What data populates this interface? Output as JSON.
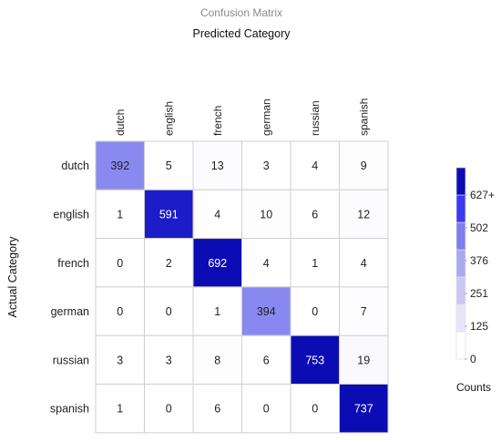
{
  "chart_data": {
    "type": "heatmap",
    "title": "Confusion Matrix",
    "xlabel": "Predicted Category",
    "ylabel": "Actual Category",
    "x_categories": [
      "dutch",
      "english",
      "french",
      "german",
      "russian",
      "spanish"
    ],
    "y_categories": [
      "dutch",
      "english",
      "french",
      "german",
      "russian",
      "spanish"
    ],
    "values": [
      [
        392,
        5,
        13,
        3,
        4,
        9
      ],
      [
        1,
        591,
        4,
        10,
        6,
        12
      ],
      [
        0,
        2,
        692,
        4,
        1,
        4
      ],
      [
        0,
        0,
        1,
        394,
        0,
        7
      ],
      [
        3,
        3,
        8,
        6,
        753,
        19
      ],
      [
        1,
        0,
        6,
        0,
        0,
        737
      ]
    ],
    "colorbar": {
      "title": "Counts",
      "tick_labels": [
        "0",
        "125",
        "251",
        "376",
        "502",
        "627+"
      ],
      "range": [
        0,
        627
      ],
      "colors": [
        "#ffffff",
        "#e6e6f8",
        "#c9c9f3",
        "#a9a9ef",
        "#7e7ef0",
        "#3a3af0",
        "#0c0cb4"
      ]
    }
  }
}
